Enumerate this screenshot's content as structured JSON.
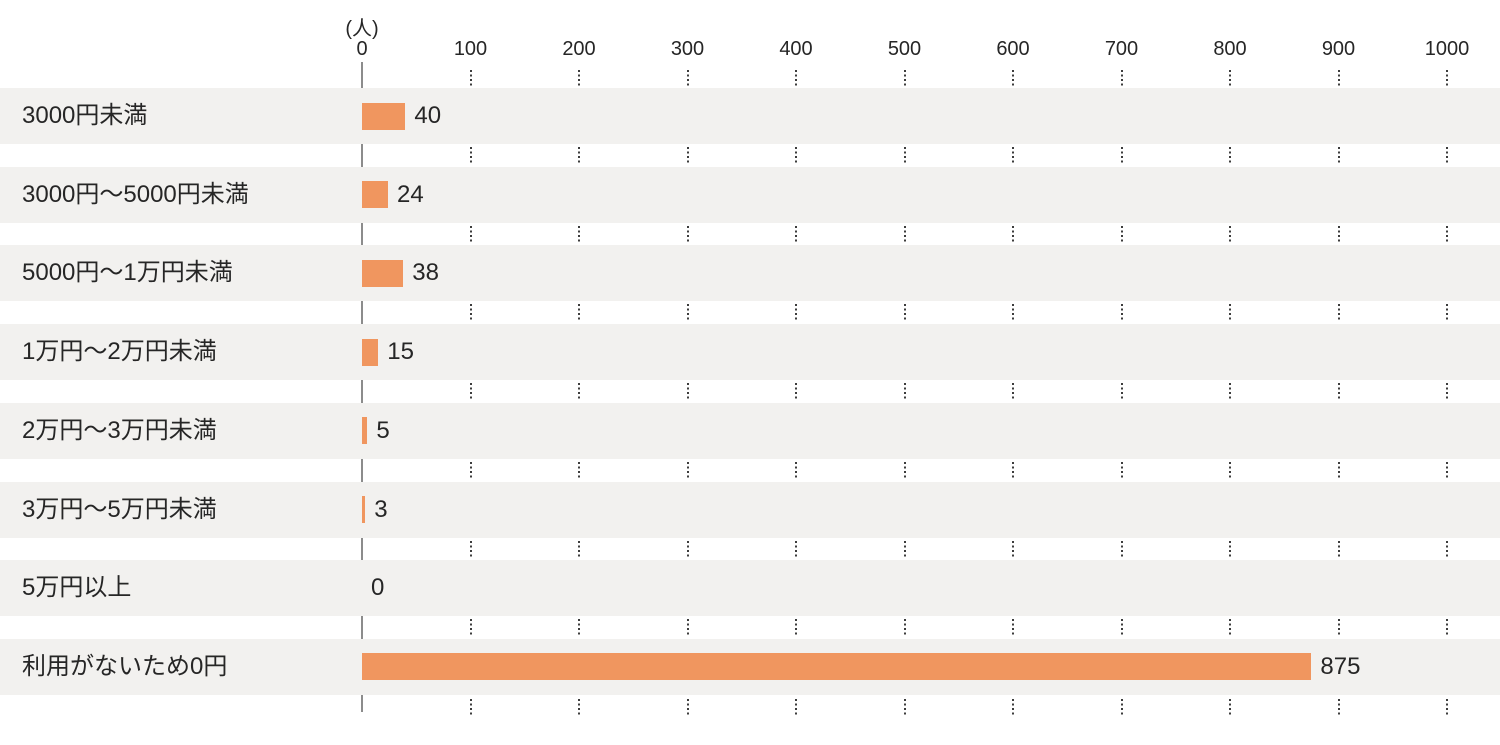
{
  "chart_data": {
    "type": "bar",
    "orientation": "horizontal",
    "title": "",
    "unit_label": "(人)",
    "categories": [
      "3000円未満",
      "3000円〜5000円未満",
      "5000円〜1万円未満",
      "1万円〜2万円未満",
      "2万円〜3万円未満",
      "3万円〜5万円未満",
      "5万円以上",
      "利用がないため0円"
    ],
    "values": [
      40,
      24,
      38,
      15,
      5,
      3,
      0,
      875
    ],
    "x_ticks": [
      0,
      100,
      200,
      300,
      400,
      500,
      600,
      700,
      800,
      900,
      1000
    ],
    "xlim": [
      0,
      1000
    ],
    "grid": "dotted-vertical-segments-in-row-gaps",
    "legend": "none",
    "colors": {
      "bar": "#F0965F",
      "row_band": "#F2F1EF",
      "axis_line": "#8C8C8C",
      "grid_dot": "#3C3C3C",
      "text": "#262626",
      "background": "#FFFFFF"
    }
  }
}
